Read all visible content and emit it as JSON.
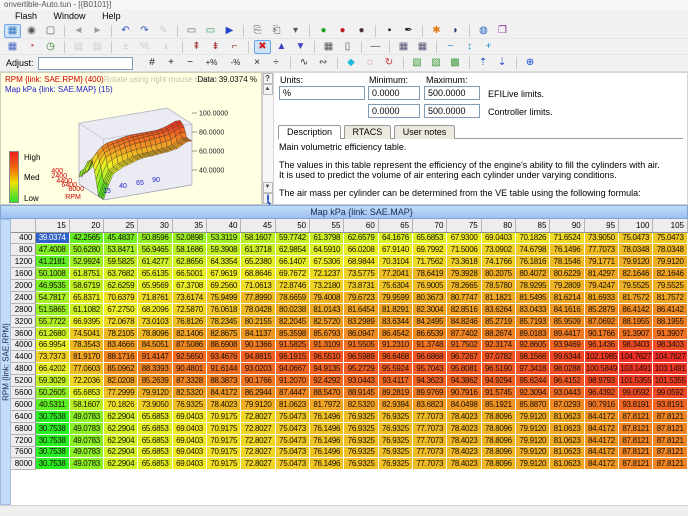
{
  "window": {
    "title": "onvertible-Auto.tun - [{B0101}]"
  },
  "menu": {
    "items": [
      "Flash",
      "Window",
      "Help"
    ]
  },
  "adjust": {
    "label": "Adjust:",
    "value": ""
  },
  "toolbars": {
    "row1": [
      [
        [
          "tuning-tree-icon",
          "▦",
          "#3A7ABF",
          1,
          0
        ],
        [
          "view-data-icon",
          "◉",
          "#555555",
          0,
          0
        ],
        [
          "window-properties-icon",
          "▢",
          "#555555",
          0,
          0
        ]
      ],
      [
        [
          "nav-back-icon",
          "◄",
          "#9AA0A8",
          0,
          0
        ],
        [
          "nav-forward-icon",
          "►",
          "#9AA0A8",
          0,
          0
        ]
      ],
      [
        [
          "undo-icon",
          "↶",
          "#3355BB",
          0,
          0
        ],
        [
          "redo-icon",
          "↷",
          "#3355BB",
          0,
          0
        ],
        [
          "edit-icon",
          "✎",
          "#777777",
          0,
          1
        ]
      ],
      [
        [
          "select-region-icon",
          "▭",
          "#666666",
          0,
          0
        ],
        [
          "select-cells-icon",
          "▭",
          "#2A9A5A",
          0,
          0
        ],
        [
          "run-icon",
          "▶",
          "#2244CC",
          0,
          0
        ]
      ],
      [
        [
          "copy-icon",
          "⎘",
          "#555555",
          0,
          0
        ],
        [
          "paste-icon",
          "⎗",
          "#555555",
          0,
          0
        ],
        [
          "paste-options-icon",
          "▾",
          "#555555",
          0,
          0
        ]
      ],
      [
        [
          "marker-green-icon",
          "●",
          "#1FA01F",
          0,
          0
        ],
        [
          "marker-red-icon",
          "●",
          "#C02020",
          0,
          0
        ],
        [
          "marker-dark-icon",
          "●",
          "#503030",
          0,
          0
        ]
      ],
      [
        [
          "flag-bold-icon",
          "▪",
          "#222222",
          0,
          0
        ],
        [
          "pen-icon",
          "✒",
          "#222222",
          0,
          0
        ]
      ],
      [
        [
          "hand-icon",
          "✱",
          "#E07818",
          0,
          0
        ],
        [
          "helmet-icon",
          "◗",
          "#203070",
          0,
          0
        ]
      ],
      [
        [
          "globe-icon",
          "◍",
          "#2060C0",
          0,
          0
        ],
        [
          "book-icon",
          "❒",
          "#8B2AA0",
          0,
          0
        ]
      ]
    ],
    "row2": [
      [
        [
          "grid-map-icon",
          "▦",
          "#4468C8",
          0,
          0
        ],
        [
          "chart-3d-icon",
          "◔",
          "#C03030",
          0,
          0
        ],
        [
          "history-icon",
          "◷",
          "#2A7A2A",
          0,
          0
        ]
      ],
      [
        [
          "copy-cal-icon",
          "▤",
          "#666666",
          0,
          1
        ],
        [
          "copy-slt-icon",
          "▤",
          "#666666",
          0,
          1
        ]
      ],
      [
        [
          "plus-minus-icon",
          "±",
          "#666666",
          0,
          1
        ],
        [
          "percent-icon",
          "%",
          "#666666",
          0,
          1
        ],
        [
          "mean-icon",
          "x̄",
          "#666666",
          0,
          1
        ]
      ],
      [
        [
          "link-up-icon",
          "⇞",
          "#A03030",
          0,
          0
        ],
        [
          "link-add-icon",
          "⇟",
          "#A03030",
          0,
          0
        ],
        [
          "link-remove-icon",
          "⌐",
          "#A03030",
          0,
          0
        ]
      ],
      [
        [
          "clear-flags-icon",
          "✖",
          "#D02020",
          1,
          0
        ],
        [
          "flag-up-icon",
          "▲",
          "#4040C0",
          0,
          0
        ],
        [
          "flag-down-icon",
          "▼",
          "#4040C0",
          0,
          0
        ]
      ],
      [
        [
          "table-view-icon",
          "▦",
          "#555555",
          0,
          0
        ],
        [
          "column-view-icon",
          "▯",
          "#555555",
          0,
          0
        ]
      ],
      [
        [
          "dash-icon",
          "—",
          "#555555",
          0,
          0
        ]
      ],
      [
        [
          "grid-a-icon",
          "▦",
          "#555577",
          0,
          0
        ],
        [
          "grid-b-icon",
          "▦",
          "#555577",
          0,
          0
        ]
      ],
      [
        [
          "shrink-icon",
          "−",
          "#2090D0",
          0,
          0
        ],
        [
          "fit-icon",
          "↕",
          "#2090D0",
          0,
          0
        ],
        [
          "grow-icon",
          "+",
          "#2090D0",
          0,
          0
        ]
      ]
    ],
    "adjust_row": [
      [
        [
          "set-value-icon",
          "#",
          "#222222",
          0,
          0
        ],
        [
          "add-icon",
          "+",
          "#222222",
          0,
          0
        ],
        [
          "subtract-icon",
          "−",
          "#222222",
          0,
          0
        ],
        [
          "add-percent-icon",
          "+%",
          "#222222",
          0,
          0
        ],
        [
          "subtract-percent-icon",
          "-%",
          "#222222",
          0,
          0
        ],
        [
          "multiply-icon",
          "×",
          "#222222",
          0,
          0
        ],
        [
          "divide-icon",
          "÷",
          "#222222",
          0,
          0
        ]
      ],
      [
        [
          "smooth-icon",
          "∿",
          "#333333",
          0,
          0
        ],
        [
          "smooth-region-icon",
          "∾",
          "#333333",
          0,
          0
        ]
      ],
      [
        [
          "interpolate-icon",
          "◆",
          "#20B8D8",
          0,
          0
        ],
        [
          "select-outline-icon",
          "◌",
          "#D03030",
          0,
          0
        ],
        [
          "reapply-icon",
          "↻",
          "#D03030",
          0,
          0
        ]
      ],
      [
        [
          "map-compare-icon",
          "▧",
          "#3A9A3A",
          0,
          0
        ],
        [
          "map-overlay-icon",
          "▨",
          "#3A9A3A",
          0,
          0
        ],
        [
          "map-trace-icon",
          "▩",
          "#3A9A3A",
          0,
          0
        ]
      ],
      [
        [
          "increase-precision-icon",
          "⇡",
          "#2050C0",
          0,
          0
        ],
        [
          "decrease-precision-icon",
          "⇣",
          "#2050C0",
          0,
          0
        ]
      ],
      [
        [
          "add-column-icon",
          "⊕",
          "#1040D0",
          0,
          0
        ]
      ]
    ]
  },
  "plot_panel": {
    "row_axis_label": "RPM {link: SAE.RPM} (400)",
    "hint": "Rotate using right mouse button",
    "data_readout": "Data: 39.0374 %",
    "col_axis_label": "Map kPa {link: SAE.MAP} (15)",
    "z_ticks": [
      "100.0000",
      "80.0000",
      "60.0000",
      "40.0000"
    ],
    "rpm_ticks": [
      "400",
      "2400",
      "4400",
      "6400",
      "8000"
    ],
    "rpm_axis_name": "RPM",
    "map_ticks": [
      "15",
      "40",
      "65",
      "90"
    ],
    "legend": {
      "high": "High",
      "med": "Med",
      "low": "Low"
    },
    "help_button": "?"
  },
  "info_panel": {
    "units_label": "Units:",
    "units_value": "%",
    "minimum_label": "Minimum:",
    "maximum_label": "Maximum:",
    "efilive": {
      "min": "0.0000",
      "max": "500.0000",
      "label": "EFILive limits."
    },
    "controller": {
      "min": "0.0000",
      "max": "500.0000",
      "label": "Controller limits."
    },
    "tabs": [
      "Description",
      "RTACS",
      "User notes"
    ],
    "description": [
      "Main volumetric efficiency table.",
      "The values in this table represent the efficiency of the engine's ability to fill the cylinders with air.",
      "It is used to predict the volume of air entering each cylinder under varying conditions.",
      "The air mass per cylinder can be determined from the VE table using the following formula:"
    ]
  },
  "table": {
    "title": "Map kPa {link: SAE.MAP}",
    "row_axis_title": "RPM {link: SAE.RPM}",
    "col_headers": [
      "15",
      "20",
      "25",
      "30",
      "35",
      "40",
      "45",
      "50",
      "55",
      "60",
      "65",
      "70",
      "75",
      "80",
      "85",
      "90",
      "95",
      "100",
      "105"
    ],
    "row_headers": [
      "400",
      "800",
      "1200",
      "1600",
      "2000",
      "2400",
      "2800",
      "3200",
      "3600",
      "4000",
      "4400",
      "4800",
      "5200",
      "5600",
      "6000",
      "6400",
      "6800",
      "7200",
      "7600",
      "8000"
    ],
    "selected": {
      "row": 0,
      "col": 0
    },
    "rows": [
      [
        "39.0374",
        "42.2565",
        "45.4837",
        "50.8596",
        "52.0898",
        "53.3119",
        "58.1607",
        "59.7742",
        "61.3798",
        "62.6579",
        "64.1676",
        "65.6853",
        "67.9300",
        "69.0403",
        "70.1826",
        "71.6524",
        "73.9050",
        "75.0473",
        "75.0473"
      ],
      [
        "47.4008",
        "50.6280",
        "53.8471",
        "56.9465",
        "58.1686",
        "59.3908",
        "61.3718",
        "62.9854",
        "64.5910",
        "66.0208",
        "67.9140",
        "69.7992",
        "71.5006",
        "73.0902",
        "74.6798",
        "76.1496",
        "77.7073",
        "78.0348",
        "78.0348"
      ],
      [
        "41.2181",
        "52.9924",
        "59.5825",
        "61.4277",
        "62.8656",
        "64.3354",
        "65.2380",
        "66.1407",
        "67.5306",
        "68.9844",
        "70.3104",
        "71.7562",
        "73.3618",
        "74.1766",
        "76.1816",
        "78.1546",
        "79.1771",
        "79.9120",
        "79.9120"
      ],
      [
        "50.1008",
        "61.8751",
        "63.7682",
        "65.6135",
        "66.5001",
        "67.9619",
        "68.8646",
        "69.7672",
        "72.1237",
        "73.5775",
        "77.2041",
        "78.6419",
        "79.3928",
        "80.2075",
        "80.4072",
        "80.6229",
        "81.4297",
        "82.1646",
        "82.1646"
      ],
      [
        "46.9535",
        "58.6719",
        "62.6259",
        "65.9569",
        "67.3708",
        "69.2560",
        "71.0613",
        "72.8746",
        "73.2180",
        "73.8731",
        "75.6304",
        "76.9005",
        "78.2665",
        "78.5780",
        "78.9295",
        "79.2809",
        "79.4247",
        "79.5525",
        "79.5525"
      ],
      [
        "54.7817",
        "65.8371",
        "70.6379",
        "71.8761",
        "73.6174",
        "75.9499",
        "77.8990",
        "78.6659",
        "79.4008",
        "79.6723",
        "79.9599",
        "80.3673",
        "80.7747",
        "81.1821",
        "81.5495",
        "81.6214",
        "81.6933",
        "81.7572",
        "81.7572"
      ],
      [
        "51.5865",
        "61.1082",
        "67.2750",
        "68.2096",
        "72.5870",
        "76.0618",
        "78.0428",
        "80.0238",
        "81.0143",
        "81.6454",
        "81.8291",
        "82.3004",
        "82.8516",
        "83.6264",
        "83.0433",
        "84.1616",
        "85.2879",
        "86.4142",
        "86.4142"
      ],
      [
        "55.7722",
        "66.9395",
        "72.0678",
        "73.0103",
        "76.8126",
        "78.2345",
        "80.2155",
        "82.2045",
        "82.5720",
        "83.2989",
        "83.6344",
        "84.2495",
        "84.8246",
        "85.2719",
        "85.7193",
        "85.9509",
        "87.0692",
        "88.1955",
        "88.1955"
      ],
      [
        "61.2680",
        "74.5041",
        "78.2105",
        "78.8096",
        "82.1406",
        "82.8675",
        "84.1137",
        "85.3598",
        "85.6793",
        "86.0947",
        "86.4542",
        "86.6539",
        "87.7402",
        "88.2674",
        "89.0183",
        "89.4417",
        "90.1766",
        "91.3907",
        "91.3907"
      ],
      [
        "66.9954",
        "78.3543",
        "83.4666",
        "84.5051",
        "87.5086",
        "88.6908",
        "90.1366",
        "91.5825",
        "91.3109",
        "91.5505",
        "91.2310",
        "91.3748",
        "91.7502",
        "92.3174",
        "92.8605",
        "93.9469",
        "96.1436",
        "98.3403",
        "98.3403"
      ],
      [
        "73.7373",
        "81.9170",
        "88.1716",
        "91.4147",
        "92.5650",
        "93.4676",
        "94.8815",
        "96.1915",
        "96.5510",
        "96.5989",
        "96.6468",
        "96.6868",
        "96.7267",
        "97.0782",
        "98.1566",
        "99.6344",
        "102.1985",
        "104.7627",
        "104.7627"
      ],
      [
        "66.4202",
        "77.0603",
        "85.0962",
        "88.3393",
        "90.4801",
        "91.6144",
        "93.0203",
        "94.0667",
        "94.9135",
        "95.2729",
        "95.5924",
        "95.7043",
        "95.8081",
        "96.5190",
        "97.3418",
        "98.0288",
        "100.5849",
        "103.1491",
        "103.1491"
      ],
      [
        "59.3029",
        "72.2036",
        "82.0208",
        "85.2639",
        "87.3328",
        "88.3873",
        "90.1766",
        "91.2070",
        "92.4292",
        "93.0443",
        "93.4117",
        "94.3623",
        "94.3862",
        "94.9294",
        "95.6244",
        "96.4152",
        "98.9793",
        "101.5355",
        "101.5355"
      ],
      [
        "50.2605",
        "65.6853",
        "77.2999",
        "79.9120",
        "82.5320",
        "84.4172",
        "86.2944",
        "87.4447",
        "88.5470",
        "88.9145",
        "89.2819",
        "89.9769",
        "90.7916",
        "91.5745",
        "92.3094",
        "93.0443",
        "96.4392",
        "99.0592",
        "99.0592"
      ],
      [
        "40.5311",
        "58.1607",
        "70.1826",
        "73.9050",
        "76.9325",
        "78.4023",
        "79.9120",
        "81.0623",
        "81.7972",
        "82.5320",
        "82.9394",
        "83.6823",
        "84.0498",
        "85.1921",
        "85.8870",
        "87.0293",
        "90.7916",
        "93.8191",
        "93.8191"
      ],
      [
        "30.7538",
        "49.0783",
        "62.2904",
        "65.6853",
        "69.0403",
        "70.9175",
        "72.8027",
        "75.0473",
        "76.1496",
        "76.9325",
        "76.9325",
        "77.7073",
        "78.4023",
        "78.8096",
        "79.9120",
        "81.0623",
        "84.4172",
        "87.8121",
        "87.8121"
      ],
      [
        "30.7538",
        "49.0783",
        "62.2904",
        "65.6853",
        "69.0403",
        "70.9175",
        "72.8027",
        "75.0473",
        "76.1496",
        "76.9325",
        "76.9325",
        "77.7073",
        "78.4023",
        "78.8096",
        "79.9120",
        "81.0623",
        "84.4172",
        "87.8121",
        "87.8121"
      ],
      [
        "30.7538",
        "49.0783",
        "62.2904",
        "65.6853",
        "69.0403",
        "70.9175",
        "72.8027",
        "75.0473",
        "76.1496",
        "76.9325",
        "76.9325",
        "77.7073",
        "78.4023",
        "78.8096",
        "79.9120",
        "81.0623",
        "84.4172",
        "87.8121",
        "87.8121"
      ],
      [
        "30.7538",
        "49.0783",
        "62.2904",
        "65.6853",
        "69.0403",
        "70.9175",
        "72.8027",
        "75.0473",
        "76.1496",
        "76.9325",
        "76.9325",
        "77.7073",
        "78.4023",
        "78.8096",
        "79.9120",
        "81.0623",
        "84.4172",
        "87.8121",
        "87.8121"
      ],
      [
        "30.7538",
        "49.0783",
        "62.2904",
        "65.6853",
        "69.0403",
        "70.9175",
        "72.8027",
        "75.0473",
        "76.1496",
        "76.9325",
        "76.9325",
        "77.7073",
        "78.4023",
        "78.8096",
        "79.9120",
        "81.0623",
        "84.4172",
        "87.8121",
        "87.8121"
      ]
    ]
  }
}
